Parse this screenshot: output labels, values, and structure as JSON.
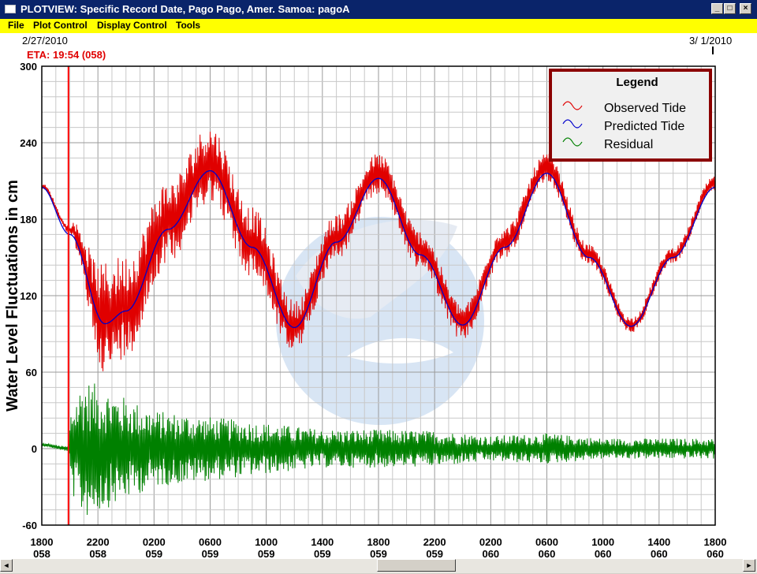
{
  "window": {
    "title": "PLOTVIEW: Specific Record Date, Pago Pago, Amer. Samoa: pagoA",
    "buttons": {
      "minimize": "_",
      "maximize": "□",
      "close": "×"
    }
  },
  "menu": [
    "File",
    "Plot Control",
    "Display Control",
    "Tools"
  ],
  "header": {
    "start_date": "2/27/2010",
    "end_date": "3/ 1/2010",
    "eta_label": "ETA: 19:54 (058)"
  },
  "colors": {
    "observed": "#e00000",
    "predicted": "#0000cc",
    "residual": "#008000",
    "eta_line": "#ff0000",
    "legend_border": "#8b0000",
    "menubar": "#ffff00",
    "titlebar": "#0a246a"
  },
  "chart_data": {
    "type": "line",
    "ylabel": "Water Level Fluctuations in cm",
    "ylim": [
      -60,
      300
    ],
    "yticks": [
      -60,
      0,
      60,
      120,
      180,
      240,
      300
    ],
    "xlim": [
      0,
      48
    ],
    "x_units": "hours since 1800 day 058",
    "xticks": [
      {
        "x": 0,
        "time": "1800",
        "day": "058"
      },
      {
        "x": 4,
        "time": "2200",
        "day": "058"
      },
      {
        "x": 8,
        "time": "0200",
        "day": "059"
      },
      {
        "x": 12,
        "time": "0600",
        "day": "059"
      },
      {
        "x": 16,
        "time": "1000",
        "day": "059"
      },
      {
        "x": 20,
        "time": "1400",
        "day": "059"
      },
      {
        "x": 24,
        "time": "1800",
        "day": "059"
      },
      {
        "x": 28,
        "time": "2200",
        "day": "059"
      },
      {
        "x": 32,
        "time": "0200",
        "day": "060"
      },
      {
        "x": 36,
        "time": "0600",
        "day": "060"
      },
      {
        "x": 40,
        "time": "1000",
        "day": "060"
      },
      {
        "x": 44,
        "time": "1400",
        "day": "060"
      },
      {
        "x": 48,
        "time": "1800",
        "day": "060"
      }
    ],
    "grid": true,
    "legend": {
      "title": "Legend",
      "placement": "top-right",
      "entries": [
        "Observed Tide",
        "Predicted Tide",
        "Residual"
      ]
    },
    "eta_x": 1.9,
    "series": [
      {
        "name": "Predicted Tide",
        "color": "#0000cc",
        "x": [
          0,
          2,
          4.5,
          6,
          9,
          12,
          15,
          18,
          21,
          24,
          27,
          30,
          33,
          36,
          39,
          42,
          45,
          48
        ],
        "values": [
          205,
          168,
          98,
          108,
          172,
          218,
          158,
          95,
          162,
          212,
          152,
          97,
          158,
          216,
          150,
          96,
          150,
          205
        ]
      },
      {
        "name": "Observed Tide",
        "color": "#e00000",
        "x": [
          0,
          2,
          4.5,
          6,
          9,
          12,
          15,
          18,
          21,
          24,
          27,
          30,
          33,
          36,
          39,
          42,
          45,
          48
        ],
        "values": [
          206,
          172,
          102,
          112,
          178,
          224,
          162,
          96,
          166,
          216,
          156,
          99,
          162,
          220,
          152,
          97,
          152,
          208
        ],
        "envelope_cm": [
          2,
          3,
          45,
          40,
          32,
          30,
          28,
          20,
          18,
          16,
          15,
          14,
          12,
          12,
          8,
          6,
          6,
          6
        ]
      },
      {
        "name": "Residual",
        "color": "#008000",
        "x": [
          0,
          1.9,
          2.1,
          3,
          5,
          8,
          12,
          16,
          20,
          24,
          28,
          32,
          36,
          40,
          44,
          48
        ],
        "values": [
          3,
          0,
          0,
          0,
          0,
          0,
          0,
          0,
          0,
          0,
          0,
          0,
          0,
          0,
          0,
          0
        ],
        "envelope_cm": [
          1,
          2,
          35,
          55,
          45,
          30,
          25,
          20,
          15,
          15,
          14,
          10,
          12,
          8,
          8,
          8
        ]
      }
    ]
  }
}
